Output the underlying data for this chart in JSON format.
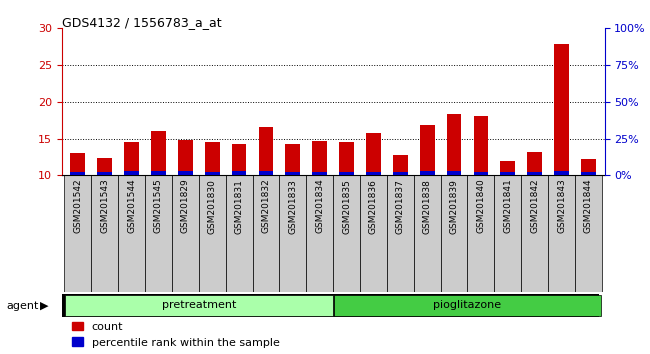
{
  "title": "GDS4132 / 1556783_a_at",
  "samples": [
    "GSM201542",
    "GSM201543",
    "GSM201544",
    "GSM201545",
    "GSM201829",
    "GSM201830",
    "GSM201831",
    "GSM201832",
    "GSM201833",
    "GSM201834",
    "GSM201835",
    "GSM201836",
    "GSM201837",
    "GSM201838",
    "GSM201839",
    "GSM201840",
    "GSM201841",
    "GSM201842",
    "GSM201843",
    "GSM201844"
  ],
  "count_values": [
    13.0,
    12.3,
    14.5,
    16.0,
    14.8,
    14.5,
    14.2,
    16.6,
    14.3,
    14.6,
    14.5,
    15.8,
    12.8,
    16.8,
    18.3,
    18.0,
    11.9,
    13.2,
    27.8,
    12.2
  ],
  "percentile_values": [
    0.5,
    0.5,
    0.6,
    0.6,
    0.6,
    0.5,
    0.6,
    0.6,
    0.5,
    0.5,
    0.5,
    0.5,
    0.4,
    0.6,
    0.6,
    0.5,
    0.5,
    0.5,
    0.6,
    0.5
  ],
  "bar_bottom": 10.0,
  "count_color": "#cc0000",
  "percentile_color": "#0000cc",
  "group1_label": "pretreatment",
  "group2_label": "pioglitazone",
  "group1_color": "#aaffaa",
  "group2_color": "#44cc44",
  "ylim_left": [
    10,
    30
  ],
  "yticks_left": [
    10,
    15,
    20,
    25,
    30
  ],
  "ytick_labels_right": [
    "0%",
    "25%",
    "50%",
    "75%",
    "100%"
  ],
  "yticks_right": [
    0,
    25,
    50,
    75,
    100
  ],
  "left_yaxis_color": "#cc0000",
  "right_yaxis_color": "#0000cc",
  "plot_bg_color": "#ffffff",
  "xtick_bg_color": "#cccccc",
  "agent_label": "agent",
  "legend_count": "count",
  "legend_percentile": "percentile rank within the sample",
  "bar_width": 0.55,
  "grid_color": "#000000"
}
